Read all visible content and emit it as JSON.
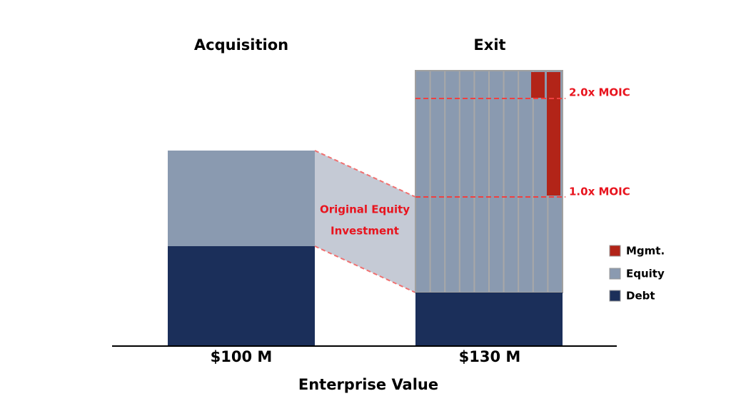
{
  "header": {
    "left_title": "Acquisition",
    "right_title": "Exit"
  },
  "bars": {
    "left_label": "$100 M",
    "right_label": "$130 M",
    "axis_label": "Enterprise Value"
  },
  "annotations": {
    "bridge_line1": "Original Equity",
    "bridge_line2": "Investment",
    "moic_2": "2.0x MOIC",
    "moic_1": "1.0x MOIC"
  },
  "legend": {
    "items": [
      "Mgmt.",
      "Equity",
      "Debt"
    ]
  }
}
